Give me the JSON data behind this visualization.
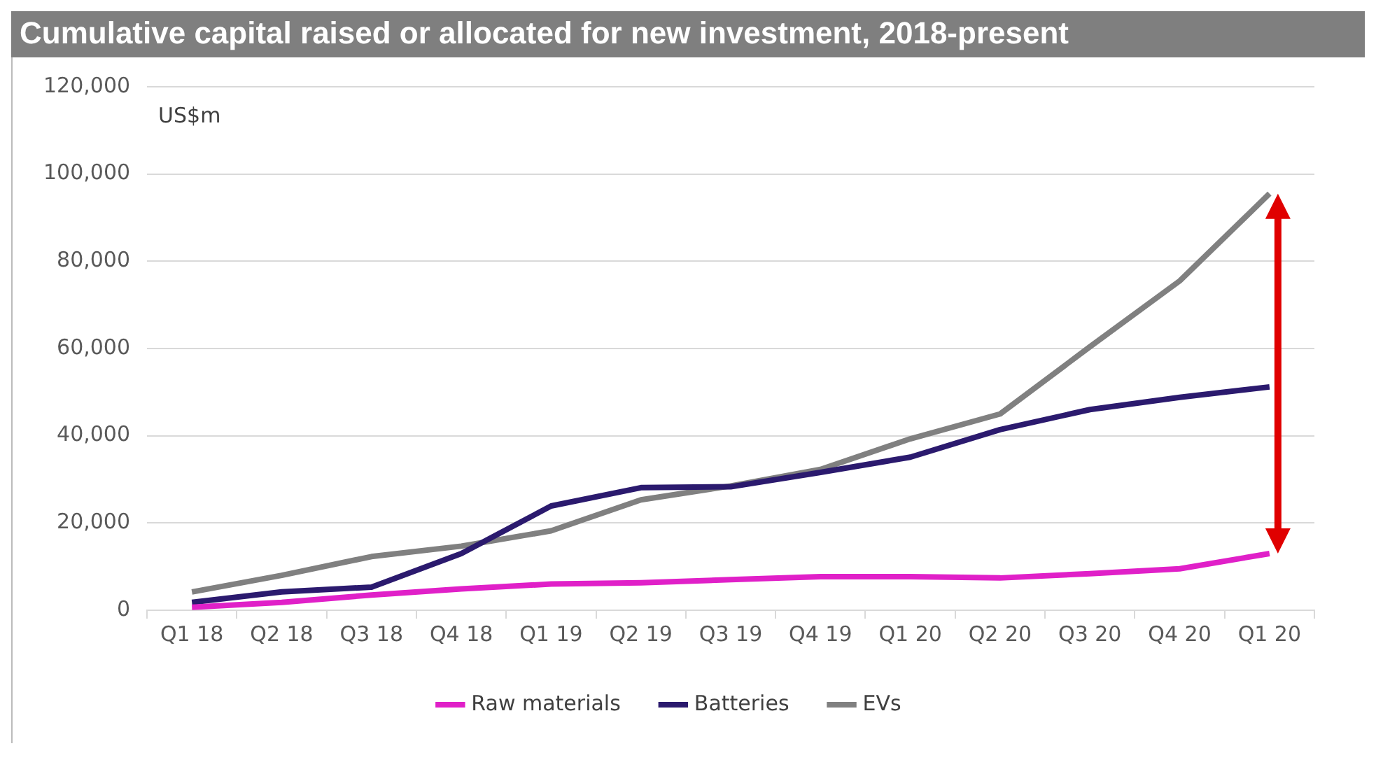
{
  "chart_data": {
    "type": "line",
    "title": "Cumulative capital raised or allocated for new investment, 2018-present",
    "ylabel": "US$m",
    "categories": [
      "Q1 18",
      "Q2 18",
      "Q3 18",
      "Q4 18",
      "Q1 19",
      "Q2 19",
      "Q3 19",
      "Q4 19",
      "Q1 20",
      "Q2 20",
      "Q3 20",
      "Q4 20",
      "Q1 20"
    ],
    "series": [
      {
        "name": "Raw materials",
        "color": "#e020c8",
        "values": [
          700,
          1800,
          3500,
          4900,
          6000,
          6300,
          7000,
          7700,
          7700,
          7400,
          8400,
          9500,
          13000
        ]
      },
      {
        "name": "Batteries",
        "color": "#2b1a6e",
        "values": [
          1800,
          4200,
          5300,
          13000,
          23900,
          28100,
          28300,
          31600,
          35100,
          41400,
          46000,
          48800,
          51200
        ]
      },
      {
        "name": "EVs",
        "color": "#808080",
        "values": [
          4200,
          8000,
          12300,
          14700,
          18200,
          25300,
          28500,
          32300,
          39300,
          45000,
          60400,
          75500,
          95500
        ]
      }
    ],
    "ylim": [
      0,
      120000
    ],
    "yticks": [
      {
        "value": 0,
        "label": "0"
      },
      {
        "value": 20000,
        "label": "20,000"
      },
      {
        "value": 40000,
        "label": "40,000"
      },
      {
        "value": 60000,
        "label": "60,000"
      },
      {
        "value": 80000,
        "label": "80,000"
      },
      {
        "value": 100000,
        "label": "100,000"
      },
      {
        "value": 120000,
        "label": "120,000"
      }
    ],
    "grid": "y",
    "legend": "bottom",
    "marker": "none",
    "line_style": "solid"
  }
}
